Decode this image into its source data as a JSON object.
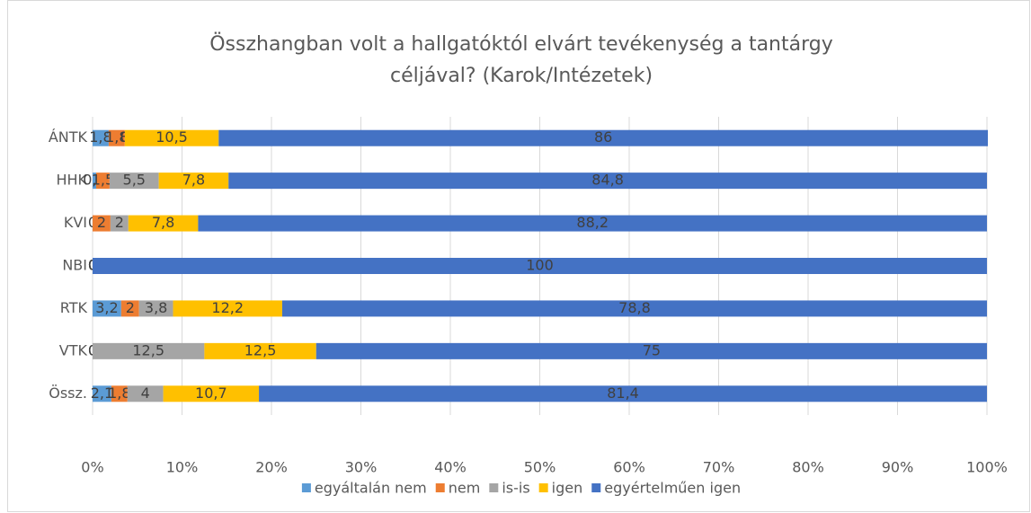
{
  "chart_data": {
    "type": "stacked-barh",
    "title": [
      "Összhangban volt a hallgatóktól elvárt tevékenység a tantárgy",
      "céljával? (Karok/Intézetek)"
    ],
    "categories": [
      "ÁNTK",
      "HHK",
      "KVI",
      "NBI",
      "RTK",
      "VTK",
      "Össz."
    ],
    "series": [
      {
        "name": "egyáltalán nem",
        "color": "#5b9bd5",
        "values": [
          1.8,
          0.4,
          0,
          0,
          3.2,
          0,
          2.1
        ],
        "value_labels": [
          "1,8",
          "0,4",
          "0",
          "0",
          "3,2",
          "0",
          "2,1"
        ]
      },
      {
        "name": "nem",
        "color": "#ed7d31",
        "values": [
          1.8,
          1.5,
          2,
          0,
          2,
          0,
          1.8
        ],
        "value_labels": [
          "1,8",
          "1,5",
          "2",
          "0",
          "2",
          "0",
          "1,8"
        ]
      },
      {
        "name": "is-is",
        "color": "#a5a5a5",
        "values": [
          0,
          5.5,
          2,
          0,
          3.8,
          12.5,
          4
        ],
        "value_labels": [
          "0",
          "5,5",
          "2",
          "0",
          "3,8",
          "12,5",
          "4"
        ]
      },
      {
        "name": "igen",
        "color": "#ffc000",
        "values": [
          10.5,
          7.8,
          7.8,
          0,
          12.2,
          12.5,
          10.7
        ],
        "value_labels": [
          "10,5",
          "7,8",
          "7,8",
          "0",
          "12,2",
          "12,5",
          "10,7"
        ]
      },
      {
        "name": "egyértelműen igen",
        "color": "#4472c4",
        "values": [
          86,
          84.8,
          88.2,
          100,
          78.8,
          75,
          81.4
        ],
        "value_labels": [
          "86",
          "84,8",
          "88,2",
          "100",
          "78,8",
          "75",
          "81,4"
        ]
      }
    ],
    "xlim": [
      0,
      100
    ],
    "xticks": [
      {
        "value": 0,
        "label": "0%"
      },
      {
        "value": 10,
        "label": "10%"
      },
      {
        "value": 20,
        "label": "20%"
      },
      {
        "value": 30,
        "label": "30%"
      },
      {
        "value": 40,
        "label": "40%"
      },
      {
        "value": 50,
        "label": "50%"
      },
      {
        "value": 60,
        "label": "60%"
      },
      {
        "value": 70,
        "label": "70%"
      },
      {
        "value": 80,
        "label": "80%"
      },
      {
        "value": 90,
        "label": "90%"
      },
      {
        "value": 100,
        "label": "100%"
      }
    ],
    "grid": true,
    "legend": "bottom"
  }
}
